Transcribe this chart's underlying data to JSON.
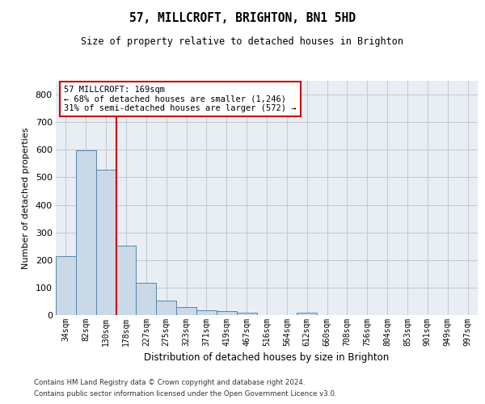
{
  "title_line1": "57, MILLCROFT, BRIGHTON, BN1 5HD",
  "title_line2": "Size of property relative to detached houses in Brighton",
  "xlabel": "Distribution of detached houses by size in Brighton",
  "ylabel": "Number of detached properties",
  "bin_labels": [
    "34sqm",
    "82sqm",
    "130sqm",
    "178sqm",
    "227sqm",
    "275sqm",
    "323sqm",
    "371sqm",
    "419sqm",
    "467sqm",
    "516sqm",
    "564sqm",
    "612sqm",
    "660sqm",
    "708sqm",
    "756sqm",
    "804sqm",
    "853sqm",
    "901sqm",
    "949sqm",
    "997sqm"
  ],
  "bar_values": [
    215,
    598,
    527,
    253,
    118,
    52,
    30,
    18,
    14,
    8,
    0,
    0,
    8,
    0,
    0,
    0,
    0,
    0,
    0,
    0,
    0
  ],
  "bar_color": "#c9d9e8",
  "bar_edge_color": "#5588aa",
  "vline_color": "#cc0000",
  "annotation_text": "57 MILLCROFT: 169sqm\n← 68% of detached houses are smaller (1,246)\n31% of semi-detached houses are larger (572) →",
  "annotation_box_color": "#ffffff",
  "annotation_box_edge": "#cc0000",
  "ylim": [
    0,
    850
  ],
  "yticks": [
    0,
    100,
    200,
    300,
    400,
    500,
    600,
    700,
    800
  ],
  "footer_line1": "Contains HM Land Registry data © Crown copyright and database right 2024.",
  "footer_line2": "Contains public sector information licensed under the Open Government Licence v3.0.",
  "background_color": "#ffffff",
  "plot_bg_color": "#e8eef4",
  "grid_color": "#c0c8d0"
}
